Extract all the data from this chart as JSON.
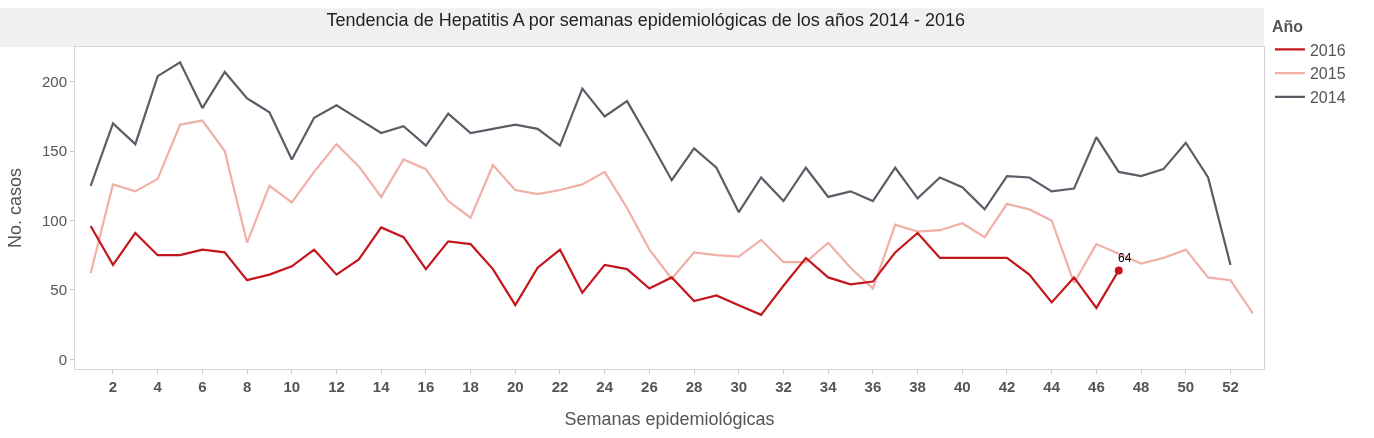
{
  "chart_data": {
    "type": "line",
    "title": "Tendencia de Hepatitis A por semanas epidemiológicas de los años 2014 - 2016",
    "xlabel": "Semanas epidemiológicas",
    "ylabel": "No. casos",
    "legend_title": "Año",
    "legend": "top right",
    "line_style": "solid",
    "xlim": [
      0.3,
      53.5
    ],
    "xticks": [
      2,
      4,
      6,
      8,
      10,
      12,
      14,
      16,
      18,
      20,
      22,
      24,
      26,
      28,
      30,
      32,
      34,
      36,
      38,
      40,
      42,
      44,
      46,
      48,
      50,
      52
    ],
    "ylim": [
      -7,
      225
    ],
    "yticks": [
      0,
      50,
      100,
      150,
      200
    ],
    "annotations": [
      {
        "text": "64",
        "x": 47,
        "y": 64
      }
    ],
    "series": [
      {
        "name": "2016",
        "color": "#c4161c",
        "x": [
          1,
          2,
          3,
          4,
          5,
          6,
          7,
          8,
          9,
          10,
          11,
          12,
          13,
          14,
          15,
          16,
          17,
          18,
          19,
          20,
          21,
          22,
          23,
          24,
          25,
          26,
          27,
          28,
          29,
          30,
          31,
          32,
          33,
          34,
          35,
          36,
          37,
          38,
          39,
          40,
          41,
          42,
          43,
          44,
          45,
          46,
          47
        ],
        "values": [
          96,
          68,
          91,
          75,
          75,
          79,
          77,
          57,
          61,
          67,
          79,
          61,
          72,
          95,
          88,
          65,
          85,
          83,
          65,
          39,
          66,
          79,
          48,
          68,
          65,
          51,
          59,
          42,
          46,
          39,
          32,
          53,
          73,
          59,
          54,
          56,
          77,
          91,
          73,
          73,
          73,
          73,
          61,
          41,
          59,
          37,
          64
        ]
      },
      {
        "name": "2015",
        "color": "#f0b0a8",
        "x": [
          1,
          2,
          3,
          4,
          5,
          6,
          7,
          8,
          9,
          10,
          11,
          12,
          13,
          14,
          15,
          16,
          17,
          18,
          19,
          20,
          21,
          22,
          23,
          24,
          25,
          26,
          27,
          28,
          29,
          30,
          31,
          32,
          33,
          34,
          35,
          36,
          37,
          38,
          39,
          40,
          41,
          42,
          43,
          44,
          45,
          46,
          47,
          48,
          49,
          50,
          51,
          52,
          53
        ],
        "values": [
          62,
          126,
          121,
          130,
          169,
          172,
          150,
          84,
          125,
          113,
          135,
          155,
          139,
          117,
          144,
          137,
          114,
          102,
          140,
          122,
          119,
          122,
          126,
          135,
          109,
          79,
          58,
          77,
          75,
          74,
          86,
          70,
          70,
          84,
          66,
          51,
          97,
          92,
          93,
          98,
          88,
          112,
          108,
          100,
          55,
          83,
          76,
          69,
          73,
          79,
          59,
          57,
          33
        ]
      },
      {
        "name": "2014",
        "color": "#5a5d66",
        "x": [
          1,
          2,
          3,
          4,
          5,
          6,
          7,
          8,
          9,
          10,
          11,
          12,
          13,
          14,
          15,
          16,
          17,
          18,
          19,
          20,
          21,
          22,
          23,
          24,
          25,
          26,
          27,
          28,
          29,
          30,
          31,
          32,
          33,
          34,
          35,
          36,
          37,
          38,
          39,
          40,
          41,
          42,
          43,
          44,
          45,
          46,
          47,
          48,
          49,
          50,
          51,
          52
        ],
        "values": [
          125,
          170,
          155,
          204,
          214,
          181,
          207,
          188,
          178,
          144,
          174,
          183,
          173,
          163,
          168,
          154,
          177,
          163,
          166,
          169,
          166,
          154,
          195,
          175,
          186,
          158,
          129,
          152,
          138,
          106,
          131,
          114,
          138,
          117,
          121,
          114,
          138,
          116,
          131,
          124,
          108,
          132,
          131,
          121,
          123,
          160,
          135,
          132,
          137,
          156,
          131,
          68
        ]
      }
    ]
  }
}
